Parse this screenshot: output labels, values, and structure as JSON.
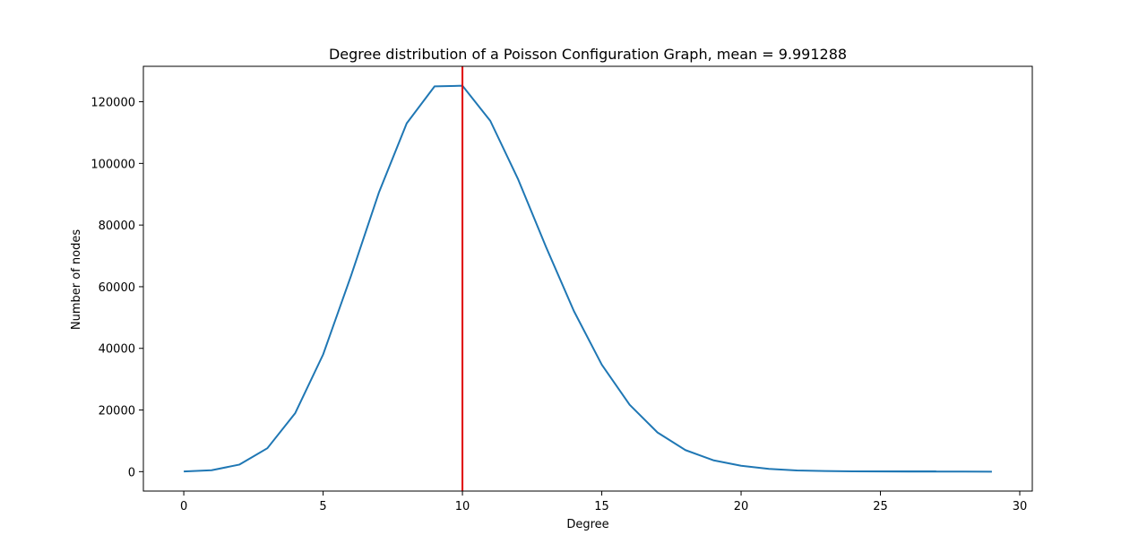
{
  "chart_data": {
    "type": "line",
    "title": "Degree distribution of a Poisson Configuration Graph, mean = 9.991288",
    "xlabel": "Degree",
    "ylabel": "Number of nodes",
    "xlim": [
      -1.45,
      30.45
    ],
    "ylim": [
      -6300,
      131500
    ],
    "xticks": [
      0,
      5,
      10,
      15,
      20,
      25,
      30
    ],
    "yticks": [
      0,
      20000,
      40000,
      60000,
      80000,
      100000,
      120000
    ],
    "grid": false,
    "series": [
      {
        "color": "#1f77b4",
        "x": [
          0,
          1,
          2,
          3,
          4,
          5,
          6,
          7,
          8,
          9,
          10,
          11,
          12,
          13,
          14,
          15,
          16,
          17,
          18,
          19,
          20,
          21,
          22,
          23,
          24,
          25,
          26,
          27,
          28,
          29
        ],
        "y": [
          50,
          450,
          2300,
          7600,
          19000,
          38000,
          63500,
          90500,
          113000,
          125000,
          125200,
          113800,
          94800,
          72900,
          52100,
          34700,
          21700,
          12700,
          7000,
          3700,
          1900,
          900,
          400,
          200,
          100,
          60,
          30,
          15,
          8,
          4
        ]
      }
    ],
    "extra_segment": {
      "color": "#1f77b4",
      "x": [
        24,
        27
      ],
      "y": [
        100,
        100
      ]
    },
    "mean_line": {
      "x": 10,
      "color": "#e00000"
    }
  }
}
